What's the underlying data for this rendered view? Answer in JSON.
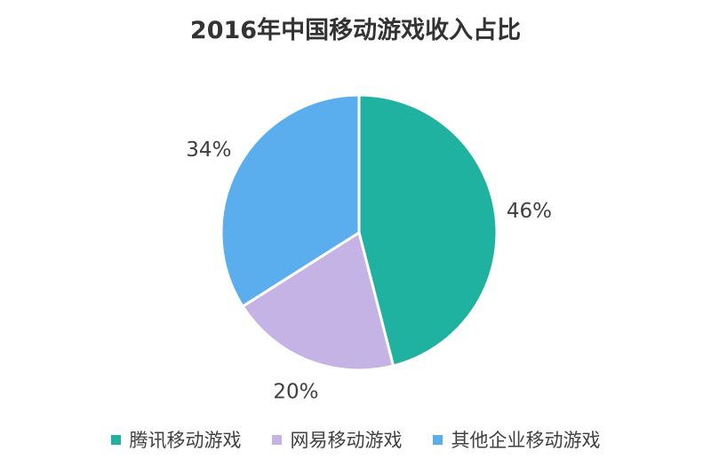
{
  "chart_data": {
    "type": "pie",
    "title": "2016年中国移动游戏收入占比",
    "categories": [
      "腾讯移动游戏",
      "网易移动游戏",
      "其他企业移动游戏"
    ],
    "values": [
      46,
      20,
      34
    ],
    "data_labels": [
      "46%",
      "20%",
      "34%"
    ],
    "colors": [
      "#20B2A0",
      "#C5B3E6",
      "#5AAEEE"
    ],
    "legend_position": "bottom",
    "start_angle_deg": 0,
    "direction": "clockwise"
  }
}
